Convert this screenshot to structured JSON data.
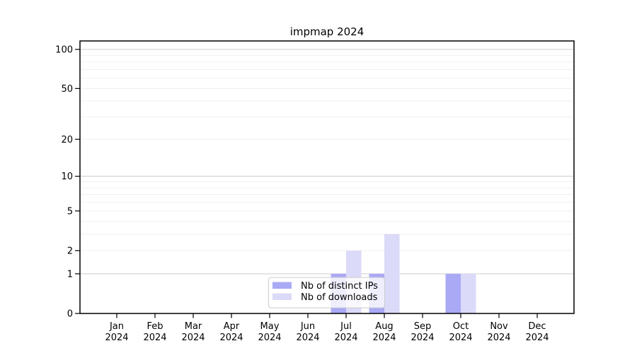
{
  "chart_data": {
    "type": "bar",
    "title": "impmap 2024",
    "x_categories": [
      "Jan",
      "Feb",
      "Mar",
      "Apr",
      "May",
      "Jun",
      "Jul",
      "Aug",
      "Sep",
      "Oct",
      "Nov",
      "Dec"
    ],
    "x_sublabel": "2024",
    "series": [
      {
        "name": "Nb of distinct IPs",
        "color": "#aaa9f6",
        "values": [
          0,
          0,
          0,
          0,
          0,
          0,
          1,
          1,
          0,
          1,
          0,
          0
        ]
      },
      {
        "name": "Nb of downloads",
        "color": "#dbdaf8",
        "values": [
          0,
          0,
          0,
          0,
          0,
          0,
          2,
          3,
          0,
          1,
          0,
          0
        ]
      }
    ],
    "y_axis": {
      "scale": "log1p",
      "ticks": [
        0,
        1,
        2,
        5,
        10,
        20,
        50,
        100
      ],
      "major_gridlines": [
        1,
        10,
        100
      ],
      "minor_gridlines": [
        2,
        3,
        4,
        5,
        6,
        7,
        8,
        9,
        20,
        30,
        40,
        50,
        60,
        70,
        80,
        90
      ],
      "ylim": [
        0,
        115
      ]
    },
    "legend": {
      "position": "lower-center-inside",
      "entries": [
        "Nb of distinct IPs",
        "Nb of downloads"
      ]
    },
    "grid": true,
    "colors": {
      "grid_major": "#cccccc",
      "grid_minor": "#f0f0f0",
      "spine": "#000000",
      "text": "#000000",
      "legend_border": "#cccccc",
      "legend_bg": "rgba(255,255,255,0.8)"
    }
  }
}
